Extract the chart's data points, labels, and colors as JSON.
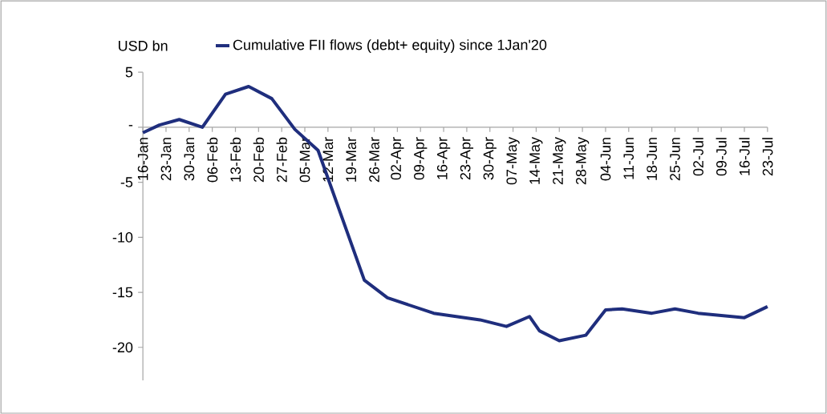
{
  "chart_data": {
    "type": "line",
    "ylabel": "USD bn",
    "x": [
      "2020-01-16",
      "2020-01-21",
      "2020-01-27",
      "2020-02-03",
      "2020-02-10",
      "2020-02-17",
      "2020-02-24",
      "2020-03-02",
      "2020-03-09",
      "2020-03-23",
      "2020-03-30",
      "2020-04-13",
      "2020-04-27",
      "2020-05-05",
      "2020-05-12",
      "2020-05-15",
      "2020-05-21",
      "2020-05-29",
      "2020-06-04",
      "2020-06-09",
      "2020-06-18",
      "2020-06-25",
      "2020-07-02",
      "2020-07-16",
      "2020-07-23"
    ],
    "series": [
      {
        "name": "Cumulative FII flows (debt+ equity) since 1Jan'20",
        "color": "#1f2e7d",
        "values": [
          -0.5,
          0.2,
          0.7,
          0.0,
          3.0,
          3.7,
          2.6,
          -0.2,
          -2.1,
          -13.9,
          -15.5,
          -16.9,
          -17.5,
          -18.1,
          -17.2,
          -18.5,
          -19.4,
          -18.9,
          -16.6,
          -16.5,
          -16.9,
          -16.5,
          -16.9,
          -17.3,
          -16.3
        ]
      }
    ],
    "ylim": [
      -23,
      5
    ],
    "yticks": [
      5,
      {
        "value": 0,
        "label": "-"
      },
      -5,
      -10,
      -15,
      -20
    ],
    "xlim": [
      "2020-01-16",
      "2020-07-23"
    ],
    "xticks": [
      {
        "value": "2020-01-16",
        "label": "16-Jan"
      },
      {
        "value": "2020-01-23",
        "label": "23-Jan"
      },
      {
        "value": "2020-01-30",
        "label": "30-Jan"
      },
      {
        "value": "2020-02-06",
        "label": "06-Feb"
      },
      {
        "value": "2020-02-13",
        "label": "13-Feb"
      },
      {
        "value": "2020-02-20",
        "label": "20-Feb"
      },
      {
        "value": "2020-02-27",
        "label": "27-Feb"
      },
      {
        "value": "2020-03-05",
        "label": "05-Mar"
      },
      {
        "value": "2020-03-12",
        "label": "12-Mar"
      },
      {
        "value": "2020-03-19",
        "label": "19-Mar"
      },
      {
        "value": "2020-03-26",
        "label": "26-Mar"
      },
      {
        "value": "2020-04-02",
        "label": "02-Apr"
      },
      {
        "value": "2020-04-09",
        "label": "09-Apr"
      },
      {
        "value": "2020-04-16",
        "label": "16-Apr"
      },
      {
        "value": "2020-04-23",
        "label": "23-Apr"
      },
      {
        "value": "2020-04-30",
        "label": "30-Apr"
      },
      {
        "value": "2020-05-07",
        "label": "07-May"
      },
      {
        "value": "2020-05-14",
        "label": "14-May"
      },
      {
        "value": "2020-05-21",
        "label": "21-May"
      },
      {
        "value": "2020-05-28",
        "label": "28-May"
      },
      {
        "value": "2020-06-04",
        "label": "04-Jun"
      },
      {
        "value": "2020-06-11",
        "label": "11-Jun"
      },
      {
        "value": "2020-06-18",
        "label": "18-Jun"
      },
      {
        "value": "2020-06-25",
        "label": "25-Jun"
      },
      {
        "value": "2020-07-02",
        "label": "02-Jul"
      },
      {
        "value": "2020-07-09",
        "label": "09-Jul"
      },
      {
        "value": "2020-07-16",
        "label": "16-Jul"
      },
      {
        "value": "2020-07-23",
        "label": "23-Jul"
      }
    ],
    "legend": "top"
  }
}
